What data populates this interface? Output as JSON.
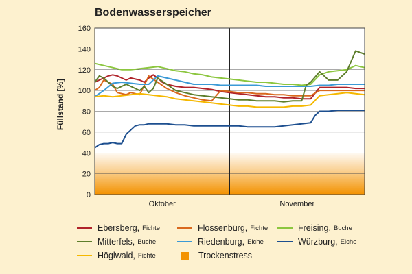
{
  "chart_data": {
    "type": "line",
    "title": "Bodenwasserspeicher",
    "ylabel": "Füllstand [%]",
    "xlabel": "",
    "ylim": [
      0,
      160
    ],
    "yticks": [
      0,
      20,
      40,
      60,
      80,
      100,
      120,
      140,
      160
    ],
    "x_categories": [
      "Oktober",
      "November"
    ],
    "x_range": [
      0,
      60
    ],
    "month_divider_x": 30,
    "grid": "horizontal",
    "legend_position": "bottom",
    "stress_band": {
      "label": "Trockenstress",
      "range": [
        0,
        40
      ],
      "color": "#f39200"
    },
    "series": [
      {
        "name": "Ebersberg",
        "species": "Fichte",
        "color": "#b0232a",
        "x": [
          0,
          1,
          2,
          3,
          4,
          5,
          6,
          7,
          8,
          9,
          10,
          11,
          12,
          13,
          14,
          15,
          16,
          17,
          18,
          20,
          22,
          24,
          26,
          28,
          30,
          32,
          34,
          36,
          38,
          40,
          42,
          44,
          46,
          48,
          50,
          52,
          54,
          56,
          58,
          60
        ],
        "y": [
          108,
          110,
          112,
          114,
          115,
          114,
          112,
          110,
          112,
          111,
          110,
          108,
          112,
          115,
          112,
          108,
          106,
          105,
          104,
          103,
          103,
          102,
          101,
          99,
          98,
          97,
          96,
          95,
          94,
          94,
          93,
          93,
          92,
          92,
          103,
          103,
          103,
          103,
          102,
          102
        ]
      },
      {
        "name": "Flossenbürg",
        "species": "Fichte",
        "color": "#d9691e",
        "x": [
          0,
          1,
          2,
          3,
          4,
          5,
          6,
          7,
          8,
          10,
          12,
          14,
          16,
          18,
          20,
          22,
          24,
          26,
          28,
          30,
          32,
          34,
          36,
          38,
          40,
          42,
          44,
          46,
          48,
          50,
          52,
          54,
          56,
          58,
          60
        ],
        "y": [
          100,
          103,
          110,
          108,
          106,
          98,
          97,
          96,
          98,
          96,
          114,
          108,
          102,
          98,
          95,
          93,
          91,
          90,
          100,
          99,
          98,
          98,
          97,
          97,
          96,
          96,
          95,
          95,
          95,
          100,
          100,
          100,
          100,
          100,
          100
        ]
      },
      {
        "name": "Freising",
        "species": "Buche",
        "color": "#8cc63f",
        "x": [
          0,
          2,
          4,
          6,
          8,
          10,
          12,
          14,
          16,
          18,
          20,
          22,
          24,
          26,
          28,
          30,
          32,
          34,
          36,
          38,
          40,
          42,
          44,
          46,
          48,
          50,
          52,
          54,
          56,
          58,
          60
        ],
        "y": [
          126,
          124,
          122,
          120,
          120,
          121,
          122,
          123,
          121,
          119,
          118,
          116,
          115,
          113,
          112,
          111,
          110,
          109,
          108,
          108,
          107,
          106,
          106,
          105,
          106,
          115,
          118,
          119,
          120,
          124,
          122
        ]
      },
      {
        "name": "Mitterfels",
        "species": "Buche",
        "color": "#5e7e2c",
        "x": [
          0,
          1,
          2,
          3,
          4,
          5,
          6,
          7,
          8,
          9,
          10,
          11,
          12,
          13,
          14,
          16,
          18,
          20,
          22,
          24,
          26,
          28,
          30,
          32,
          34,
          36,
          38,
          40,
          42,
          44,
          46,
          47,
          48,
          50,
          52,
          54,
          56,
          58,
          60
        ],
        "y": [
          108,
          114,
          112,
          108,
          104,
          102,
          104,
          106,
          104,
          102,
          100,
          104,
          98,
          102,
          112,
          106,
          100,
          98,
          96,
          95,
          94,
          93,
          92,
          91,
          91,
          90,
          90,
          90,
          89,
          90,
          90,
          105,
          108,
          118,
          110,
          110,
          118,
          138,
          135
        ]
      },
      {
        "name": "Riedenburg",
        "species": "Eiche",
        "color": "#3b9ad6",
        "x": [
          0,
          2,
          4,
          6,
          8,
          10,
          12,
          14,
          16,
          18,
          20,
          22,
          24,
          26,
          28,
          30,
          32,
          34,
          36,
          38,
          40,
          42,
          44,
          46,
          48,
          50,
          52,
          54,
          56,
          58,
          60
        ],
        "y": [
          94,
          100,
          107,
          108,
          107,
          106,
          106,
          114,
          112,
          110,
          108,
          106,
          106,
          106,
          105,
          105,
          105,
          105,
          105,
          104,
          104,
          104,
          104,
          104,
          104,
          105,
          105,
          106,
          106,
          106,
          106
        ]
      },
      {
        "name": "Würzburg",
        "species": "Eiche",
        "color": "#1d4f8f",
        "x": [
          0,
          1,
          2,
          3,
          4,
          5,
          6,
          7,
          8,
          9,
          10,
          11,
          12,
          14,
          16,
          18,
          20,
          22,
          24,
          26,
          28,
          30,
          32,
          34,
          36,
          38,
          40,
          42,
          44,
          46,
          48,
          49,
          50,
          52,
          54,
          56,
          58,
          60
        ],
        "y": [
          45,
          48,
          49,
          49,
          50,
          49,
          49,
          58,
          62,
          66,
          67,
          67,
          68,
          68,
          68,
          67,
          67,
          66,
          66,
          66,
          66,
          66,
          66,
          65,
          65,
          65,
          65,
          66,
          67,
          68,
          69,
          76,
          80,
          80,
          81,
          81,
          81,
          81
        ]
      },
      {
        "name": "Höglwald",
        "species": "Fichte",
        "color": "#f5b800",
        "x": [
          0,
          2,
          4,
          6,
          8,
          10,
          12,
          14,
          16,
          18,
          20,
          22,
          24,
          26,
          28,
          30,
          32,
          34,
          36,
          38,
          40,
          42,
          44,
          46,
          48,
          50,
          52,
          54,
          56,
          58,
          60
        ],
        "y": [
          94,
          95,
          94,
          95,
          96,
          97,
          96,
          95,
          94,
          92,
          91,
          90,
          89,
          88,
          87,
          86,
          85,
          85,
          84,
          84,
          84,
          84,
          85,
          85,
          86,
          95,
          96,
          97,
          98,
          97,
          96
        ]
      }
    ]
  }
}
